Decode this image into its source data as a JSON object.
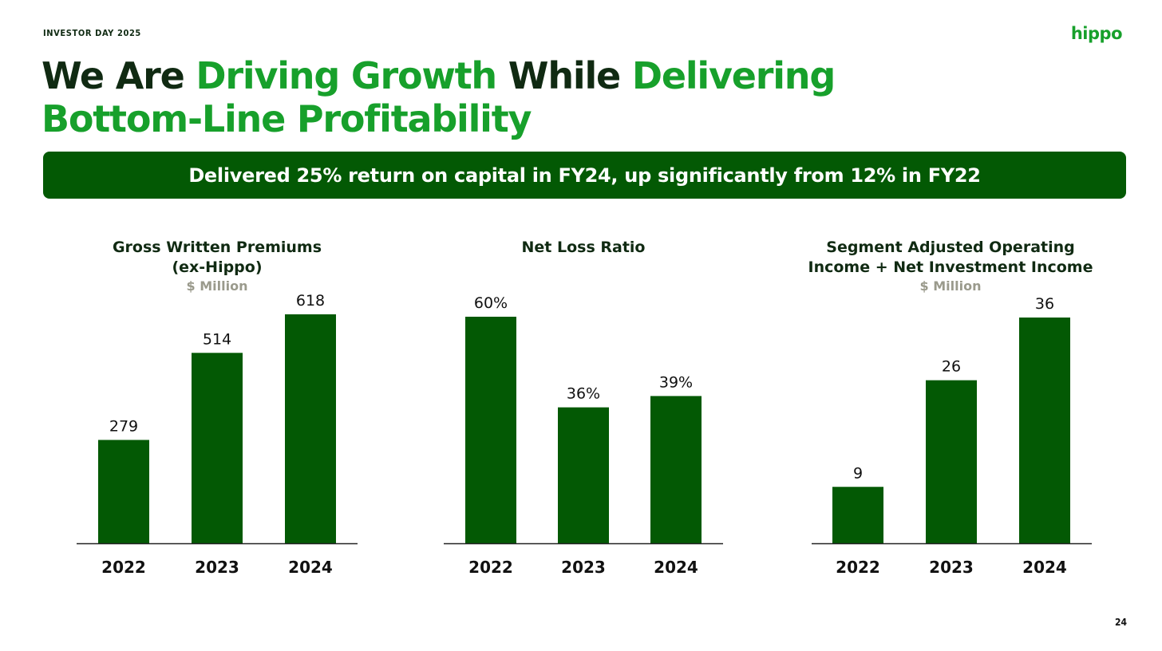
{
  "header": {
    "eyebrow": "INVESTOR DAY 2025",
    "logo": "hippo"
  },
  "headline": {
    "line1_part1": "We Are ",
    "line1_part2": "Driving Growth",
    "line1_part3": " While ",
    "line1_part4": "Delivering",
    "line2": "Bottom-Line Profitability"
  },
  "banner": {
    "text": "Delivered 25% return on capital in FY24, up significantly from 12% in FY22"
  },
  "colors": {
    "bar": "#035904",
    "accent_green": "#17a02b",
    "dark_text": "#102a12",
    "subtitle_gray": "#9a9a8c",
    "axis": "#222222"
  },
  "chart_data": [
    {
      "type": "bar",
      "title_lines": [
        "Gross Written Premiums",
        "(ex-Hippo)"
      ],
      "subtitle": "$ Million",
      "categories": [
        "2022",
        "2023",
        "2024"
      ],
      "values": [
        279,
        514,
        618
      ],
      "value_labels": [
        "279",
        "514",
        "618"
      ],
      "ylim": [
        0,
        618
      ]
    },
    {
      "type": "bar",
      "title_lines": [
        "Net Loss Ratio"
      ],
      "subtitle": "",
      "categories": [
        "2022",
        "2023",
        "2024"
      ],
      "values": [
        60,
        36,
        39
      ],
      "value_labels": [
        "60%",
        "36%",
        "39%"
      ],
      "ylim": [
        0,
        60
      ]
    },
    {
      "type": "bar",
      "title_lines": [
        "Segment Adjusted Operating",
        "Income + Net Investment Income"
      ],
      "subtitle": "$ Million",
      "categories": [
        "2022",
        "2023",
        "2024"
      ],
      "values": [
        9,
        26,
        36
      ],
      "value_labels": [
        "9",
        "26",
        "36"
      ],
      "ylim": [
        0,
        36
      ]
    }
  ],
  "footer": {
    "page_number": "24"
  }
}
